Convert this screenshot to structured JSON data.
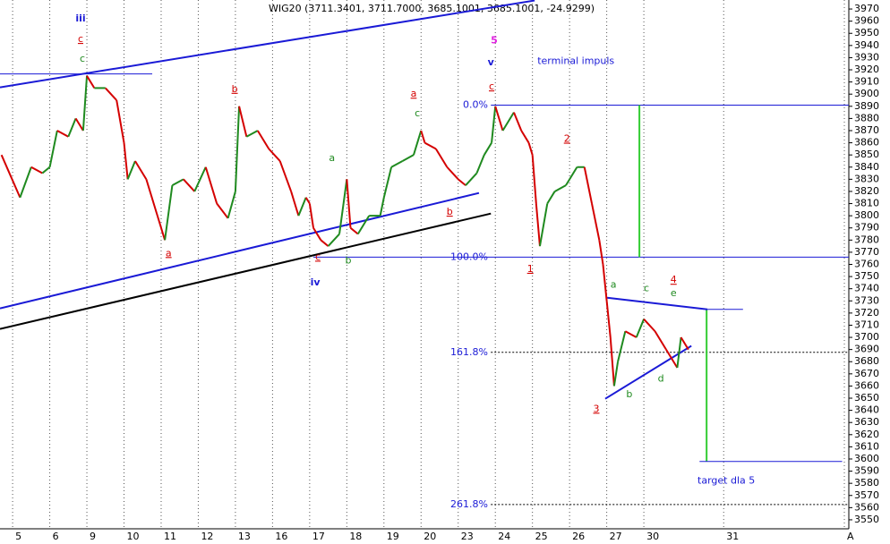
{
  "chart_data": {
    "type": "line",
    "title": "WIG20 (3711.3401, 3711.7000, 3685.1001, 3685.1001, -24.9299)",
    "xlim": [
      -0.34,
      22.52
    ],
    "ylim": [
      3542.6,
      3977.4
    ],
    "xticks": [
      {
        "value": 0,
        "label": "5"
      },
      {
        "value": 1,
        "label": "6"
      },
      {
        "value": 2,
        "label": "9"
      },
      {
        "value": 3,
        "label": "10"
      },
      {
        "value": 4,
        "label": "11"
      },
      {
        "value": 5,
        "label": "12"
      },
      {
        "value": 6,
        "label": "13"
      },
      {
        "value": 7,
        "label": "16"
      },
      {
        "value": 8,
        "label": "17"
      },
      {
        "value": 9,
        "label": "18"
      },
      {
        "value": 10,
        "label": "19"
      },
      {
        "value": 11,
        "label": "20"
      },
      {
        "value": 12,
        "label": "23"
      },
      {
        "value": 13,
        "label": "24"
      },
      {
        "value": 14,
        "label": "25"
      },
      {
        "value": 15,
        "label": "26"
      },
      {
        "value": 16,
        "label": "27"
      },
      {
        "value": 17,
        "label": "30"
      },
      {
        "value": 19.15,
        "label": "31"
      },
      {
        "value": 22.4,
        "label": "A"
      }
    ],
    "yticks": [
      3550,
      3560,
      3570,
      3580,
      3590,
      3600,
      3610,
      3620,
      3630,
      3640,
      3650,
      3660,
      3670,
      3680,
      3690,
      3700,
      3710,
      3720,
      3730,
      3740,
      3750,
      3760,
      3770,
      3780,
      3790,
      3800,
      3810,
      3820,
      3830,
      3840,
      3850,
      3860,
      3870,
      3880,
      3890,
      3900,
      3910,
      3920,
      3930,
      3940,
      3950,
      3960,
      3970
    ],
    "up_color": "#1f8a1f",
    "down_color": "#d40000",
    "series": [
      {
        "name": "WIG20",
        "x": [
          -0.3,
          0.2,
          0.5,
          0.8,
          1.0,
          1.2,
          1.5,
          1.7,
          1.9,
          2.0,
          2.2,
          2.5,
          2.8,
          3.0,
          3.1,
          3.3,
          3.6,
          3.9,
          4.1,
          4.3,
          4.6,
          4.9,
          5.2,
          5.5,
          5.8,
          6.0,
          6.1,
          6.3,
          6.6,
          6.9,
          7.2,
          7.5,
          7.7,
          7.9,
          8.0,
          8.1,
          8.3,
          8.5,
          8.8,
          9.0,
          9.1,
          9.3,
          9.6,
          9.9,
          10.0,
          10.2,
          10.5,
          10.8,
          11.0,
          11.1,
          11.4,
          11.7,
          12.0,
          12.2,
          12.5,
          12.7,
          12.9,
          13.0,
          13.2,
          13.5,
          13.7,
          13.9,
          14.0,
          14.1,
          14.2,
          14.4,
          14.6,
          14.9,
          15.0,
          15.2,
          15.4,
          15.6,
          15.8,
          15.9,
          16.0,
          16.1,
          16.2,
          16.3,
          16.5,
          16.8,
          17.0,
          17.3,
          17.6,
          17.9,
          18.0,
          18.2
        ],
        "values": [
          3850,
          3815,
          3840,
          3835,
          3840,
          3870,
          3865,
          3880,
          3870,
          3915,
          3905,
          3905,
          3895,
          3860,
          3830,
          3845,
          3830,
          3800,
          3780,
          3825,
          3830,
          3820,
          3840,
          3810,
          3798,
          3820,
          3890,
          3865,
          3870,
          3855,
          3845,
          3820,
          3800,
          3815,
          3810,
          3790,
          3780,
          3775,
          3785,
          3830,
          3790,
          3785,
          3800,
          3800,
          3815,
          3840,
          3845,
          3850,
          3870,
          3860,
          3855,
          3840,
          3830,
          3825,
          3835,
          3850,
          3860,
          3890,
          3870,
          3885,
          3870,
          3860,
          3850,
          3810,
          3775,
          3810,
          3820,
          3825,
          3830,
          3840,
          3840,
          3810,
          3780,
          3760,
          3730,
          3700,
          3660,
          3680,
          3705,
          3700,
          3715,
          3705,
          3690,
          3675,
          3700,
          3690
        ]
      }
    ],
    "lines": [
      {
        "x1": -0.34,
        "y1": 3905.6,
        "x2": 14.06,
        "y2": 3977,
        "color": "#1a1ad6",
        "width": 2
      },
      {
        "x1": -0.34,
        "y1": 3916.6,
        "x2": 3.76,
        "y2": 3916.6,
        "color": "#1a1ad6",
        "width": 1
      },
      {
        "x1": -0.34,
        "y1": 3723.8,
        "x2": 12.56,
        "y2": 3818.7,
        "color": "#1a1ad6",
        "width": 2
      },
      {
        "x1": -0.34,
        "y1": 3706.9,
        "x2": 12.88,
        "y2": 3801.8,
        "color": "#000000",
        "width": 2
      },
      {
        "x1": 12.88,
        "y1": 3891,
        "x2": 22.52,
        "y2": 3891,
        "color": "#1a1ad6",
        "width": 1
      },
      {
        "x1": 8.1,
        "y1": 3766,
        "x2": 22.52,
        "y2": 3766,
        "color": "#1a1ad6",
        "width": 1
      },
      {
        "x1": 12.88,
        "y1": 3687.7,
        "x2": 22.52,
        "y2": 3687.7,
        "color": "#000000",
        "width": 1,
        "dash": true
      },
      {
        "x1": 12.88,
        "y1": 3562.6,
        "x2": 22.52,
        "y2": 3562.6,
        "color": "#000000",
        "width": 1,
        "dash": true
      },
      {
        "x1": 16.88,
        "y1": 3891,
        "x2": 16.88,
        "y2": 3766,
        "color": "#33cc33",
        "width": 2
      },
      {
        "x1": 18.69,
        "y1": 3723,
        "x2": 18.69,
        "y2": 3598,
        "color": "#33cc33",
        "width": 2
      },
      {
        "x1": 16.01,
        "y1": 3732.6,
        "x2": 18.71,
        "y2": 3723,
        "color": "#1a1ad6",
        "width": 2
      },
      {
        "x1": 18.71,
        "y1": 3723,
        "x2": 19.67,
        "y2": 3723,
        "color": "#1a1ad6",
        "width": 1
      },
      {
        "x1": 15.96,
        "y1": 3649.5,
        "x2": 18.28,
        "y2": 3693,
        "color": "#1a1ad6",
        "width": 2
      },
      {
        "x1": 18.5,
        "y1": 3598,
        "x2": 22.34,
        "y2": 3598,
        "color": "#1a1ad6",
        "width": 1
      }
    ],
    "annotations": [
      {
        "text": "iii",
        "x": 1.83,
        "y": 3962,
        "color": "#1a1ad6",
        "bold": true
      },
      {
        "text": "c",
        "x": 1.83,
        "y": 3945,
        "color": "#d40000",
        "underline": true
      },
      {
        "text": "c",
        "x": 1.88,
        "y": 3929,
        "color": "#1f8a1f"
      },
      {
        "text": "b",
        "x": 5.98,
        "y": 3904,
        "color": "#d40000",
        "underline": true
      },
      {
        "text": "a",
        "x": 4.2,
        "y": 3769,
        "color": "#d40000",
        "underline": true
      },
      {
        "text": "a",
        "x": 10.8,
        "y": 3900,
        "color": "#d40000",
        "underline": true
      },
      {
        "text": "c",
        "x": 10.9,
        "y": 3884,
        "color": "#1f8a1f"
      },
      {
        "text": "a",
        "x": 8.6,
        "y": 3847,
        "color": "#1f8a1f"
      },
      {
        "text": "c",
        "x": 8.22,
        "y": 3766,
        "color": "#d40000",
        "underline": true
      },
      {
        "text": "b",
        "x": 9.04,
        "y": 3763,
        "color": "#1f8a1f"
      },
      {
        "text": "iv",
        "x": 8.15,
        "y": 3745,
        "color": "#1a1ad6",
        "bold": true
      },
      {
        "text": "b",
        "x": 11.77,
        "y": 3803,
        "color": "#d40000",
        "underline": true
      },
      {
        "text": "5",
        "x": 12.97,
        "y": 3944,
        "color": "#e020e0",
        "bold": true
      },
      {
        "text": "v",
        "x": 12.88,
        "y": 3926,
        "color": "#1a1ad6",
        "bold": true
      },
      {
        "text": "c",
        "x": 12.9,
        "y": 3906,
        "color": "#d40000",
        "underline": true
      },
      {
        "text": "terminal impuls",
        "x": 15.17,
        "y": 3927,
        "color": "#1a1ad6"
      },
      {
        "text": "2",
        "x": 14.93,
        "y": 3863,
        "color": "#d40000",
        "underline": true
      },
      {
        "text": "1",
        "x": 13.94,
        "y": 3756,
        "color": "#d40000",
        "underline": true
      },
      {
        "text": "3",
        "x": 15.72,
        "y": 3641,
        "color": "#d40000",
        "underline": true
      },
      {
        "text": "a",
        "x": 16.18,
        "y": 3743,
        "color": "#1f8a1f"
      },
      {
        "text": "b",
        "x": 16.61,
        "y": 3653,
        "color": "#1f8a1f"
      },
      {
        "text": "c",
        "x": 17.07,
        "y": 3740,
        "color": "#1f8a1f"
      },
      {
        "text": "d",
        "x": 17.46,
        "y": 3666,
        "color": "#1f8a1f"
      },
      {
        "text": "4",
        "x": 17.8,
        "y": 3747,
        "color": "#d40000",
        "underline": true
      },
      {
        "text": "e",
        "x": 17.8,
        "y": 3736,
        "color": "#1f8a1f"
      },
      {
        "text": "target dla 5",
        "x": 19.22,
        "y": 3582,
        "color": "#1a1ad6"
      },
      {
        "text": "0.0%",
        "x": 12.8,
        "y": 3891,
        "color": "#1a1ad6",
        "anchor": "end"
      },
      {
        "text": "100.0%",
        "x": 12.8,
        "y": 3766,
        "color": "#1a1ad6",
        "anchor": "end"
      },
      {
        "text": "161.8%",
        "x": 12.8,
        "y": 3687.7,
        "color": "#1a1ad6",
        "anchor": "end"
      },
      {
        "text": "261.8%",
        "x": 12.8,
        "y": 3562.6,
        "color": "#1a1ad6",
        "anchor": "end"
      }
    ]
  }
}
